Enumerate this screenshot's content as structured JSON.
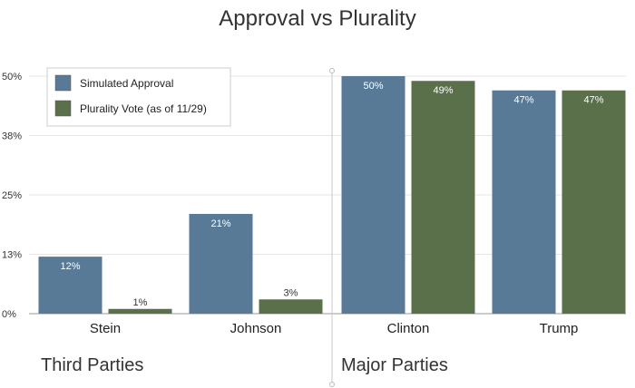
{
  "chart_data": {
    "type": "bar",
    "title": "Approval vs Plurality",
    "categories": [
      "Stein",
      "Johnson",
      "Clinton",
      "Trump"
    ],
    "series": [
      {
        "name": "Simulated Approval",
        "values": [
          12,
          21,
          50,
          47
        ],
        "labels": [
          "12%",
          "21%",
          "50%",
          "47%"
        ],
        "color": "#587a96"
      },
      {
        "name": "Plurality Vote (as of 11/29)",
        "values": [
          1,
          3,
          49,
          47
        ],
        "labels": [
          "1%",
          "3%",
          "49%",
          "47%"
        ],
        "color": "#5a704a"
      }
    ],
    "yticks": [
      {
        "value": 0,
        "label": "0%"
      },
      {
        "value": 12.5,
        "label": "13%"
      },
      {
        "value": 25,
        "label": "25%"
      },
      {
        "value": 37.5,
        "label": "38%"
      },
      {
        "value": 50,
        "label": "50%"
      }
    ],
    "ylim": [
      0,
      50
    ],
    "grid": true,
    "legend_position": "top-left",
    "groups": [
      {
        "label": "Third Parties",
        "categories": [
          "Stein",
          "Johnson"
        ]
      },
      {
        "label": "Major Parties",
        "categories": [
          "Clinton",
          "Trump"
        ]
      }
    ]
  }
}
